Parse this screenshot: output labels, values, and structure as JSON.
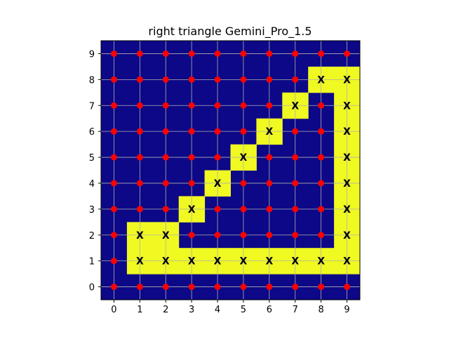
{
  "chart_data": {
    "type": "heatmap",
    "title": "right triangle Gemini_Pro_1.5",
    "xlabel": "",
    "ylabel": "",
    "x_ticks": [
      "0",
      "1",
      "2",
      "3",
      "4",
      "5",
      "6",
      "7",
      "8",
      "9"
    ],
    "y_ticks": [
      "0",
      "1",
      "2",
      "3",
      "4",
      "5",
      "6",
      "7",
      "8",
      "9"
    ],
    "xlim": [
      -0.5,
      9.5
    ],
    "ylim": [
      -0.5,
      9.5
    ],
    "grid": true,
    "colors": {
      "background": "#0d0887",
      "highlight": "#f0f921",
      "point": "#ff0000",
      "grid": "#b0b0b0",
      "mark": "#000000"
    },
    "marker_text": "X",
    "highlighted_cells": [
      [
        1,
        1
      ],
      [
        2,
        1
      ],
      [
        3,
        1
      ],
      [
        4,
        1
      ],
      [
        5,
        1
      ],
      [
        6,
        1
      ],
      [
        7,
        1
      ],
      [
        8,
        1
      ],
      [
        9,
        1
      ],
      [
        1,
        2
      ],
      [
        2,
        2
      ],
      [
        9,
        2
      ],
      [
        3,
        3
      ],
      [
        9,
        3
      ],
      [
        4,
        4
      ],
      [
        9,
        4
      ],
      [
        5,
        5
      ],
      [
        9,
        5
      ],
      [
        6,
        6
      ],
      [
        9,
        6
      ],
      [
        7,
        7
      ],
      [
        9,
        7
      ],
      [
        8,
        8
      ],
      [
        9,
        8
      ]
    ],
    "x_marked_cells": [
      [
        1,
        1
      ],
      [
        2,
        1
      ],
      [
        3,
        1
      ],
      [
        4,
        1
      ],
      [
        5,
        1
      ],
      [
        6,
        1
      ],
      [
        7,
        1
      ],
      [
        8,
        1
      ],
      [
        9,
        1
      ],
      [
        1,
        2
      ],
      [
        2,
        2
      ],
      [
        9,
        2
      ],
      [
        3,
        3
      ],
      [
        9,
        3
      ],
      [
        4,
        4
      ],
      [
        9,
        4
      ],
      [
        5,
        5
      ],
      [
        9,
        5
      ],
      [
        6,
        6
      ],
      [
        9,
        6
      ],
      [
        7,
        7
      ],
      [
        9,
        7
      ],
      [
        8,
        8
      ],
      [
        9,
        8
      ]
    ]
  }
}
